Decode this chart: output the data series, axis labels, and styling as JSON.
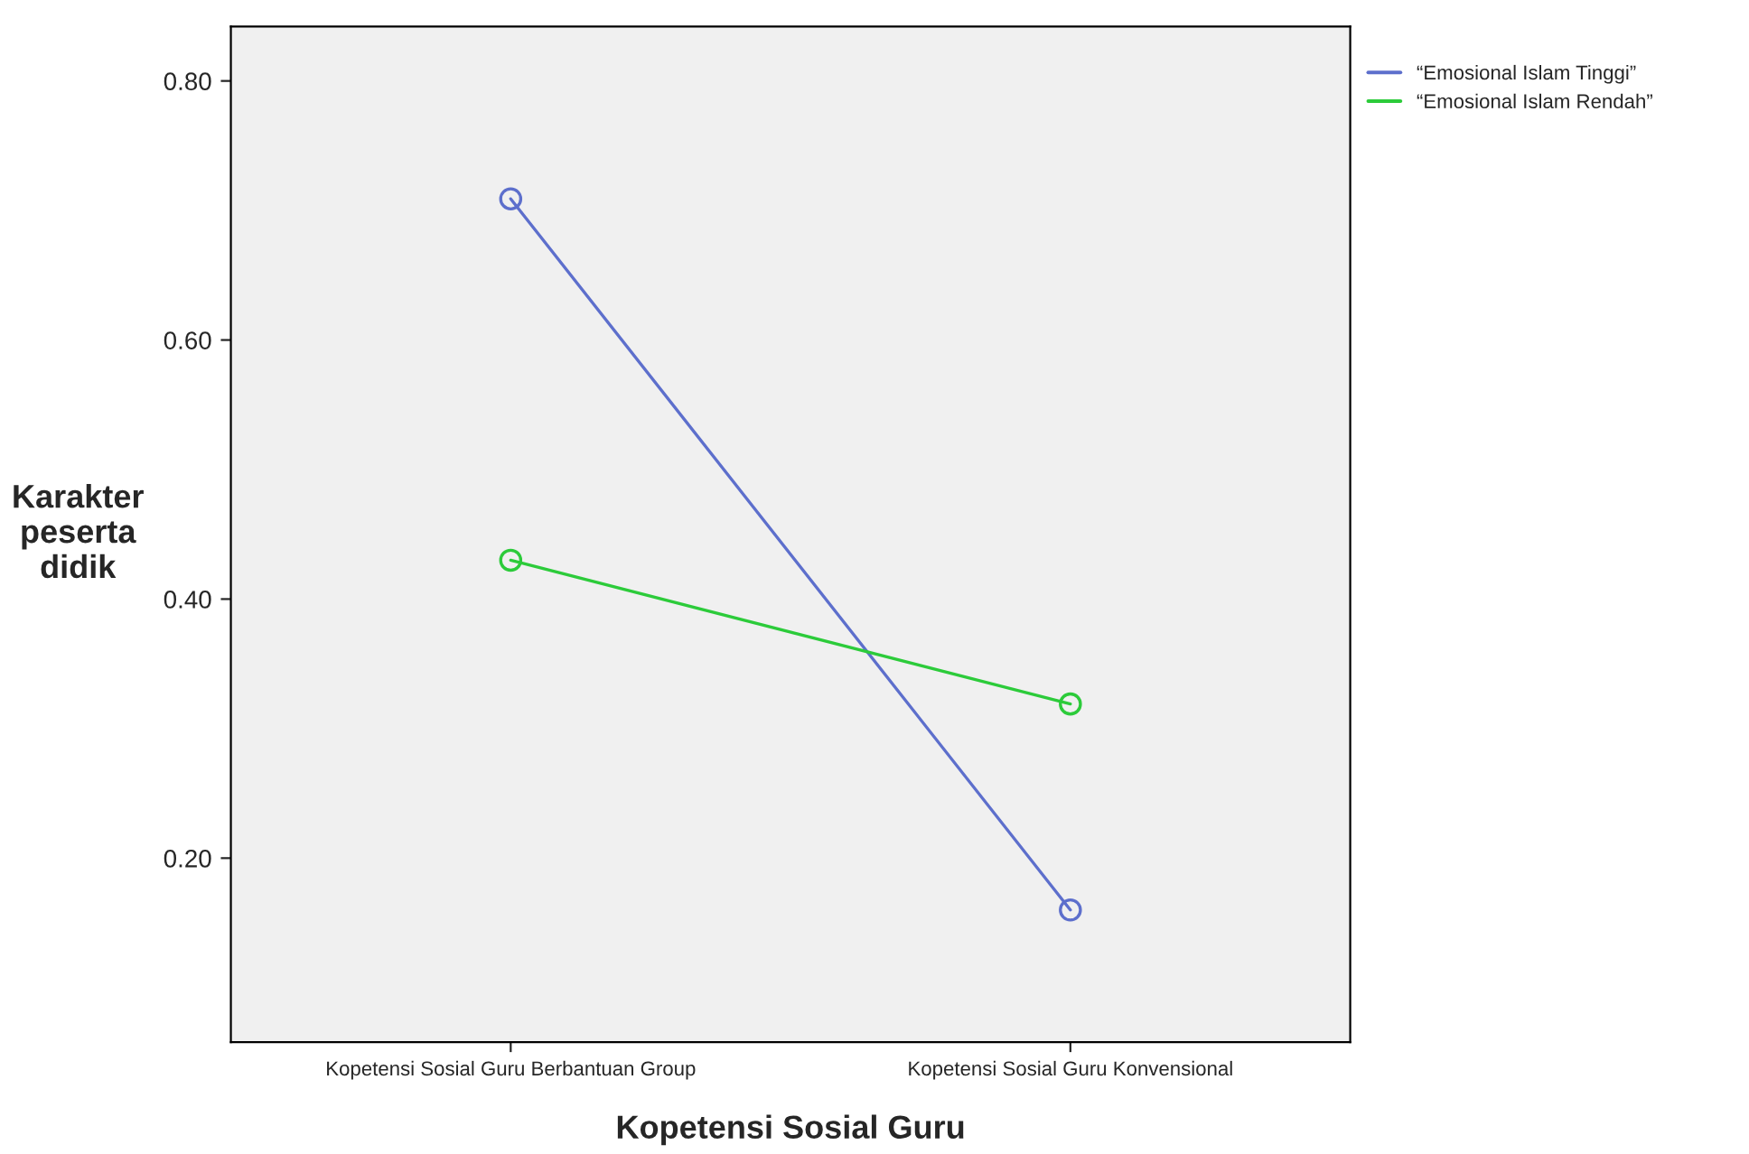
{
  "chart_data": {
    "type": "line",
    "xlabel": "Kopetensi Sosial Guru",
    "ylabel": "Karakter\npeserta\ndidik",
    "categories": [
      "Kopetensi Sosial Guru Berbantuan Group",
      "Kopetensi Sosial Guru Konvensional"
    ],
    "series": [
      {
        "name": "“Emosional Islam Tinggi”",
        "color": "#5d6fcc",
        "values": [
          0.709,
          0.16
        ]
      },
      {
        "name": "“Emosional Islam Rendah”",
        "color": "#2ccb3a",
        "values": [
          0.43,
          0.319
        ]
      }
    ],
    "ylim": [
      0.058,
      0.842
    ],
    "yticks": [
      {
        "value": 0.2,
        "label": "0.20"
      },
      {
        "value": 0.4,
        "label": "0.40"
      },
      {
        "value": 0.6,
        "label": "0.60"
      },
      {
        "value": 0.8,
        "label": "0.80"
      }
    ],
    "marker": "circle",
    "grid": false,
    "legend": "top right"
  }
}
